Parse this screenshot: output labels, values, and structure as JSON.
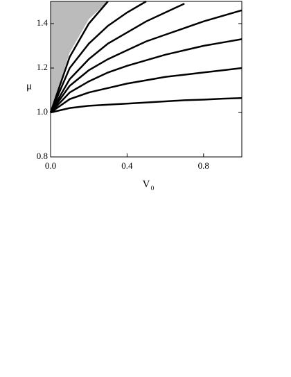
{
  "chart_data": {
    "type": "line",
    "xlabel": "V",
    "xlabel_sub": "0",
    "ylabel": "μ",
    "x": [
      0,
      0.1,
      0.2,
      0.3,
      0.4,
      0.5,
      0.6,
      0.7,
      0.8,
      0.9,
      1.0
    ],
    "series": [
      {
        "color": "#bbbbbb",
        "area": "above",
        "values": [
          1.0,
          1.27,
          1.42,
          1.5,
          null,
          null,
          null,
          null,
          null,
          null,
          null
        ]
      },
      {
        "color": "#000000",
        "values": [
          1.0,
          1.02,
          1.03,
          1.035,
          1.04,
          1.045,
          1.05,
          1.055,
          1.058,
          1.062,
          1.065
        ]
      },
      {
        "color": "#000000",
        "values": [
          1.0,
          1.06,
          1.09,
          1.11,
          1.13,
          1.145,
          1.16,
          1.17,
          1.18,
          1.19,
          1.2
        ]
      },
      {
        "color": "#000000",
        "values": [
          1.0,
          1.09,
          1.14,
          1.18,
          1.21,
          1.235,
          1.26,
          1.28,
          1.3,
          1.315,
          1.33
        ]
      },
      {
        "color": "#000000",
        "values": [
          1.0,
          1.12,
          1.19,
          1.24,
          1.28,
          1.32,
          1.35,
          1.38,
          1.41,
          1.435,
          1.46
        ]
      },
      {
        "color": "#000000",
        "values": [
          1.0,
          1.15,
          1.24,
          1.31,
          1.36,
          1.41,
          1.45,
          1.49,
          null,
          null,
          null
        ]
      },
      {
        "color": "#000000",
        "values": [
          1.0,
          1.2,
          1.31,
          1.39,
          1.45,
          1.5,
          null,
          null,
          null,
          null,
          null
        ]
      },
      {
        "color": "#000000",
        "values": [
          1.0,
          1.25,
          1.4,
          1.5,
          null,
          null,
          null,
          null,
          null,
          null,
          null
        ]
      }
    ],
    "xlim": [
      0,
      1.0
    ],
    "ylim": [
      0.8,
      1.5
    ],
    "xticks": [
      {
        "value": 0,
        "label": "0.0"
      },
      0.4,
      0.8
    ],
    "yticks": [
      0.8,
      {
        "value": 1,
        "label": "1.0"
      },
      1.2,
      1.4
    ]
  }
}
